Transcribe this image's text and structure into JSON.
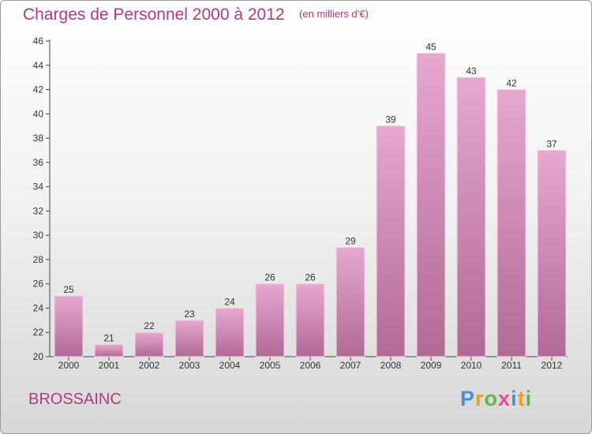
{
  "header": {
    "title": "Charges de Personnel 2000 à 2012",
    "subtitle": "(en milliers d'€)"
  },
  "commune": "BROSSAINC",
  "logo": {
    "text": "Proxiti",
    "letters": [
      {
        "char": "P",
        "color": "#4a90d9"
      },
      {
        "char": "r",
        "color": "#e8a020"
      },
      {
        "char": "o",
        "color": "#6ab04c"
      },
      {
        "char": "x",
        "color": "#e84c8a"
      },
      {
        "char": "i",
        "color": "#4a90d9"
      },
      {
        "char": "t",
        "color": "#e8a020"
      },
      {
        "char": "i",
        "color": "#6ab04c"
      }
    ]
  },
  "colors": {
    "accent": "#b03a7a",
    "bar_top": "#e6a8cf",
    "bar_bottom": "#b06a96"
  },
  "chart_data": {
    "type": "bar",
    "title": "Charges de Personnel 2000 à 2012",
    "subtitle": "(en milliers d'€)",
    "xlabel": "",
    "ylabel": "",
    "categories": [
      "2000",
      "2001",
      "2002",
      "2003",
      "2004",
      "2005",
      "2006",
      "2007",
      "2008",
      "2009",
      "2010",
      "2011",
      "2012"
    ],
    "values": [
      25,
      21,
      22,
      23,
      24,
      26,
      26,
      29,
      39,
      45,
      43,
      42,
      37
    ],
    "ylim": [
      20,
      46
    ],
    "yticks": [
      20,
      22,
      24,
      26,
      28,
      30,
      32,
      34,
      36,
      38,
      40,
      42,
      44,
      46
    ],
    "grid": false,
    "legend": "none"
  }
}
